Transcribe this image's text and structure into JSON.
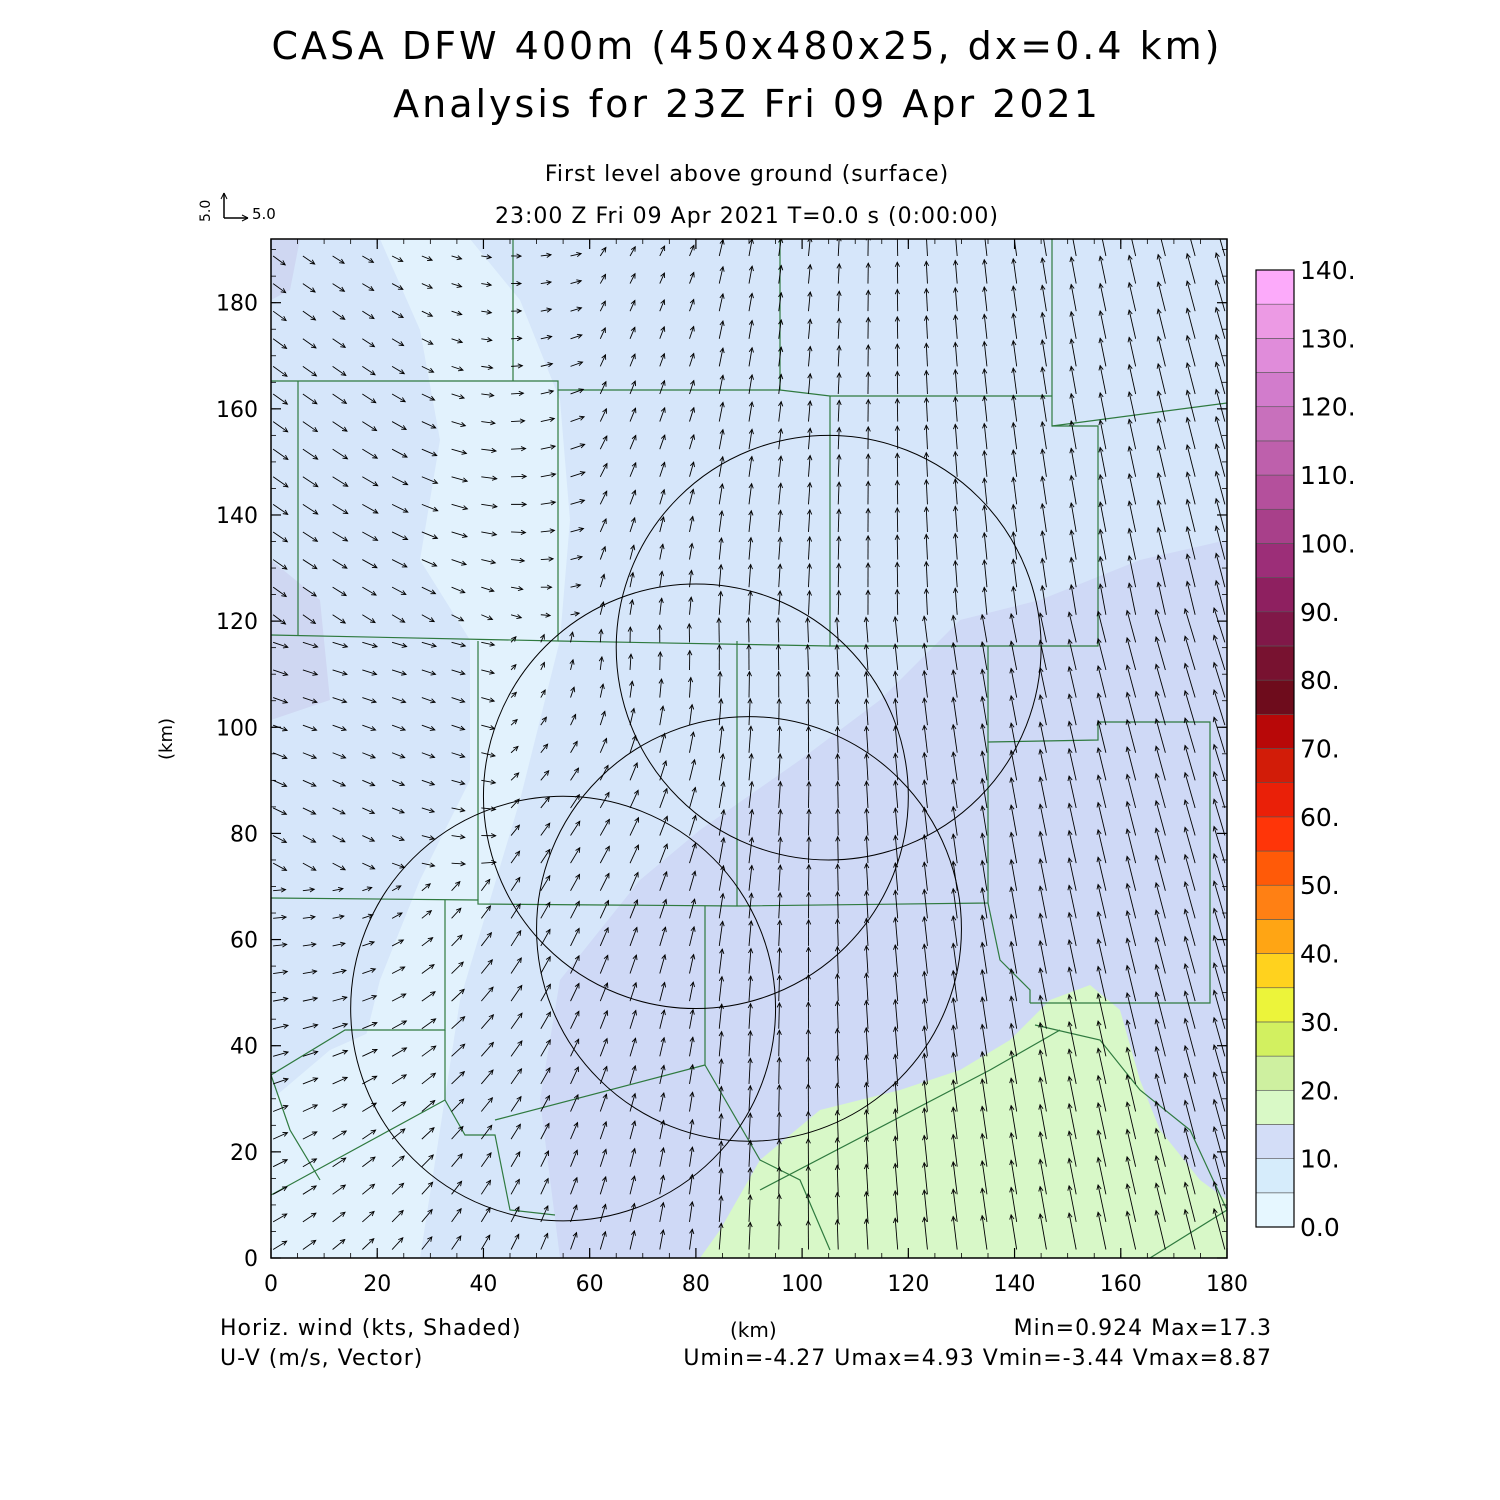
{
  "header": {
    "title_line1": "CASA DFW 400m (450x480x25, dx=0.4 km)",
    "title_line2": "Analysis for 23Z Fri 09 Apr 2021",
    "subtitle": "First level above ground (surface)",
    "time_line": "23:00 Z Fri 09 Apr 2021    T=0.0 s (0:00:00)",
    "ref_vector_u": "5.0",
    "ref_vector_v": "5.0"
  },
  "footer": {
    "left_line1": "Horiz. wind (kts, Shaded)",
    "left_line2": "U-V (m/s, Vector)",
    "center": "(km)",
    "right_line1": "Min=0.924 Max=17.3",
    "right_line2": "Umin=-4.27 Umax=4.93 Vmin=-3.44 Vmax=8.87"
  },
  "chart_data": {
    "type": "heatmap",
    "xlabel": "",
    "ylabel": "(km)",
    "xlim": [
      0,
      180
    ],
    "ylim": [
      0,
      192
    ],
    "x_ticks": [
      0,
      20,
      40,
      60,
      80,
      100,
      120,
      140,
      160,
      180
    ],
    "y_ticks": [
      0,
      20,
      40,
      60,
      80,
      100,
      120,
      140,
      160,
      180
    ],
    "colorbar": {
      "ticks": [
        "0.0",
        "10.",
        "20.",
        "30.",
        "40.",
        "50.",
        "60.",
        "70.",
        "80.",
        "90.",
        "100.",
        "110.",
        "120.",
        "130.",
        "140."
      ],
      "colors": [
        "#e6f7ff",
        "#d6ecfb",
        "#d3ddf7",
        "#d9f9c6",
        "#cef0a0",
        "#d2f060",
        "#ecf43a",
        "#ffd21e",
        "#ffa514",
        "#ff8014",
        "#ff5a08",
        "#ff3508",
        "#ea2008",
        "#d21c08",
        "#b80808",
        "#6e0c1c",
        "#781230",
        "#801848",
        "#8e2060",
        "#9c2e78",
        "#a8408a",
        "#b4509c",
        "#be60ac",
        "#c870bc",
        "#d27ccc",
        "#e08cda",
        "#ec9ae4",
        "#fcaafa"
      ]
    },
    "field_min": 0.924,
    "field_max": 17.3,
    "u_min": -4.27,
    "u_max": 4.93,
    "v_min": -3.44,
    "v_max": 8.87,
    "regions": [
      {
        "level": "0-5",
        "desc": "light",
        "center": [
          25,
          160
        ]
      },
      {
        "level": "5-10",
        "desc": "background"
      },
      {
        "level": "10-15",
        "desc": "medium",
        "center": [
          100,
          80
        ]
      },
      {
        "level": "15-20",
        "desc": "green",
        "center": [
          140,
          15
        ]
      }
    ],
    "radar_rings_center_radius_km": [
      [
        105,
        115,
        40
      ],
      [
        80,
        87,
        40
      ],
      [
        90,
        62,
        40
      ],
      [
        55,
        47,
        40
      ]
    ]
  }
}
